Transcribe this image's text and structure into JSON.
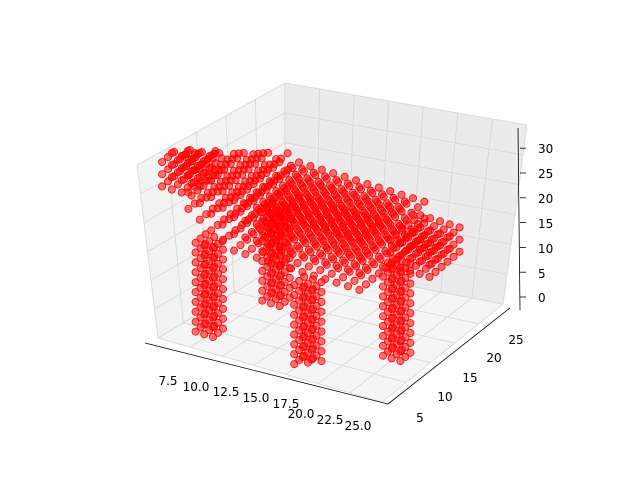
{
  "chart_data": {
    "type": "scatter",
    "projection": "3d",
    "title": "",
    "xlabel": "",
    "ylabel": "",
    "zlabel": "",
    "grid": true,
    "marker_color": "#ff0000",
    "x_ticks": [
      "7.5",
      "10.0",
      "12.5",
      "15.0",
      "17.5",
      "20.0",
      "22.5",
      "25.0"
    ],
    "y_ticks": [
      "5",
      "10",
      "15",
      "20",
      "25"
    ],
    "z_ticks": [
      "0",
      "5",
      "10",
      "15",
      "20",
      "25",
      "30"
    ],
    "xlim": [
      5.5,
      25.8
    ],
    "ylim": [
      2,
      28
    ],
    "zlim": [
      -1,
      32
    ],
    "description_parts": [
      {
        "part": "body",
        "x": [
          8,
          25
        ],
        "y": [
          6,
          24
        ],
        "z": [
          12,
          22
        ]
      },
      {
        "part": "legs",
        "x_positions": [
          8.5,
          11,
          19,
          24
        ],
        "z": [
          0,
          12
        ]
      }
    ]
  }
}
